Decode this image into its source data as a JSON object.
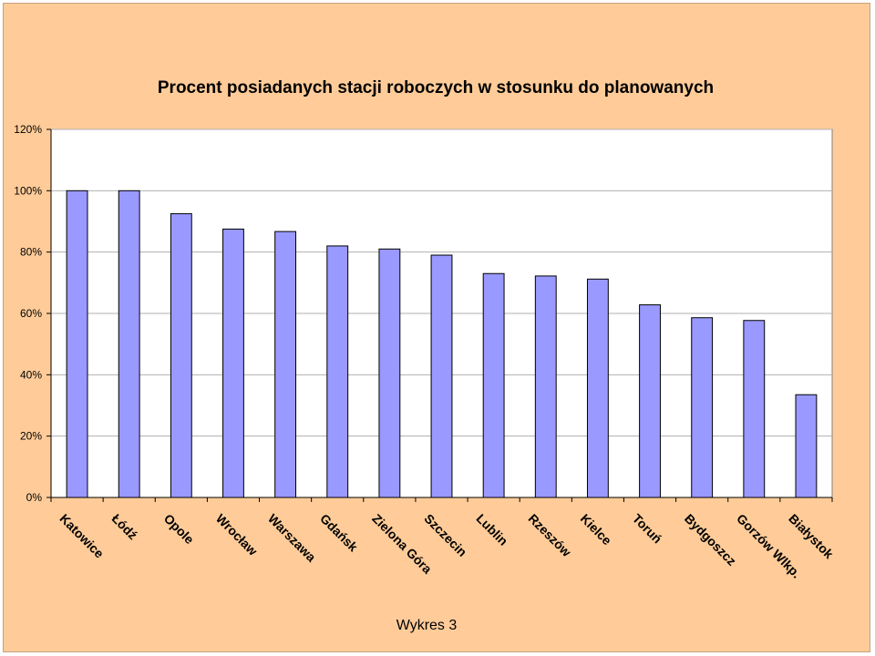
{
  "chart_data": {
    "type": "bar",
    "title": "Procent posiadanych stacji roboczych w stosunku do planowanych",
    "xlabel": "",
    "ylabel": "",
    "caption": "Wykres 3",
    "ylim": [
      0,
      120
    ],
    "yticks": [
      0,
      20,
      40,
      60,
      80,
      100,
      120
    ],
    "ytick_labels": [
      "0%",
      "20%",
      "40%",
      "60%",
      "80%",
      "100%",
      "120%"
    ],
    "categories": [
      "Katowice",
      "Łódź",
      "Opole",
      "Wrocław",
      "Warszawa",
      "Gdańsk",
      "Zielona Góra",
      "Szczecin",
      "Lublin",
      "Rzeszów",
      "Kielce",
      "Toruń",
      "Bydgoszcz",
      "Gorzów Wlkp.",
      "Białystok"
    ],
    "values": [
      100,
      100,
      92.5,
      87.5,
      86.7,
      82,
      81,
      79,
      73,
      72.2,
      71.2,
      62.8,
      58.6,
      57.7,
      33.5
    ],
    "grid": true,
    "legend": "none",
    "colors": {
      "bar_fill": "#9999ff",
      "bar_stroke": "#000000",
      "plot_bg": "#ffffff",
      "gridline": "#b0b0b0",
      "frame_bg": "#ffcc99"
    }
  }
}
